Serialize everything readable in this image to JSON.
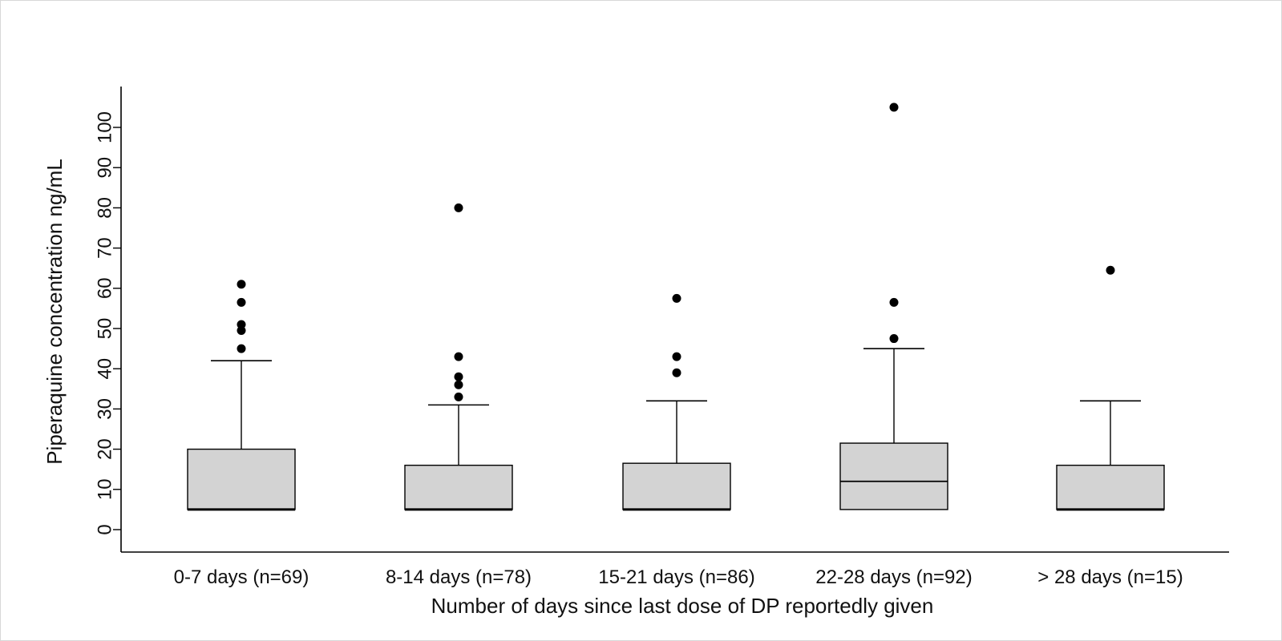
{
  "chart_data": {
    "type": "boxplot",
    "title": "",
    "xlabel": "Number of days since last dose of DP reportedly given",
    "ylabel": "Piperaquine concentration ng/mL",
    "ylim": [
      -5,
      110
    ],
    "yticks": [
      0,
      10,
      20,
      30,
      40,
      50,
      60,
      70,
      80,
      90,
      100
    ],
    "grid": false,
    "legend": "none",
    "box_fill": "#d3d3d3",
    "outlier_color": "#000000",
    "categories": [
      "0-7 days (n=69)",
      "8-14 days (n=78)",
      "15-21 days (n=86)",
      "22-28 days (n=92)",
      "> 28 days (n=15)"
    ],
    "boxes": [
      {
        "category": "0-7 days (n=69)",
        "min": 5,
        "q1": 5,
        "median": 5,
        "q3": 20,
        "max": 42,
        "outliers": [
          45,
          49.5,
          51,
          56.5,
          61
        ]
      },
      {
        "category": "8-14 days (n=78)",
        "min": 5,
        "q1": 5,
        "median": 5,
        "q3": 16,
        "max": 31,
        "outliers": [
          33,
          36,
          38,
          43,
          80
        ]
      },
      {
        "category": "15-21 days (n=86)",
        "min": 5,
        "q1": 5,
        "median": 5,
        "q3": 16.5,
        "max": 32,
        "outliers": [
          39,
          43,
          57.5
        ]
      },
      {
        "category": "22-28 days (n=92)",
        "min": 5,
        "q1": 5,
        "median": 12,
        "q3": 21.5,
        "max": 45,
        "outliers": [
          47.5,
          56.5,
          105
        ]
      },
      {
        "category": "> 28 days (n=15)",
        "min": 5,
        "q1": 5,
        "median": 5,
        "q3": 16,
        "max": 32,
        "outliers": [
          64.5
        ]
      }
    ]
  }
}
